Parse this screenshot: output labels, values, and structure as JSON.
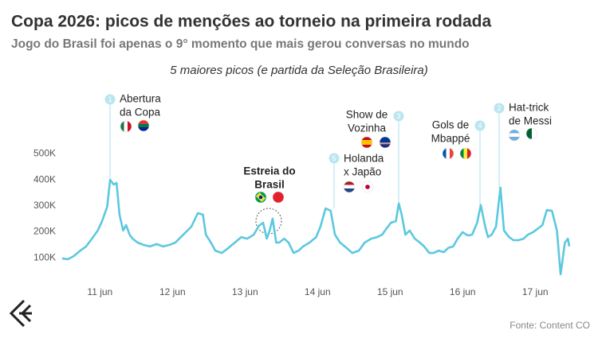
{
  "chart_data": {
    "type": "line",
    "title": "Copa 2026: picos de menções ao torneio na primeira rodada",
    "subtitle": "Jogo do Brasil foi apenas o 9° momento que mais gerou conversas no mundo",
    "caption": "5 maiores picos (e partida da Seleção Brasileira)",
    "source": "Fonte: Content CO",
    "color": "#5cc8df",
    "x": [
      10.48,
      10.56,
      10.64,
      10.73,
      10.81,
      10.89,
      10.97,
      11.03,
      11.1,
      11.14,
      11.19,
      11.23,
      11.27,
      11.32,
      11.36,
      11.41,
      11.45,
      11.52,
      11.6,
      11.69,
      11.78,
      11.87,
      11.96,
      12.04,
      12.15,
      12.26,
      12.35,
      12.42,
      12.46,
      12.53,
      12.59,
      12.68,
      12.77,
      12.86,
      12.95,
      13.03,
      13.12,
      13.19,
      13.25,
      13.3,
      13.34,
      13.38,
      13.43,
      13.47,
      13.54,
      13.6,
      13.67,
      13.74,
      13.8,
      13.89,
      13.98,
      14.04,
      14.11,
      14.18,
      14.24,
      14.31,
      14.4,
      14.48,
      14.57,
      14.65,
      14.74,
      14.82,
      14.89,
      14.93,
      15.01,
      15.08,
      15.12,
      15.16,
      15.21,
      15.27,
      15.34,
      15.41,
      15.47,
      15.54,
      15.6,
      15.67,
      15.74,
      15.8,
      15.87,
      15.93,
      16.0,
      16.07,
      16.13,
      16.2,
      16.25,
      16.31,
      16.35,
      16.4,
      16.46,
      16.52,
      16.57,
      16.64,
      16.7,
      16.77,
      16.84,
      16.9,
      16.97,
      17.03,
      17.1,
      17.16,
      17.23,
      17.3,
      17.35,
      17.41,
      17.45,
      17.47
    ],
    "values": [
      98,
      95,
      107,
      128,
      144,
      174,
      205,
      241,
      296,
      400,
      382,
      388,
      266,
      205,
      226,
      189,
      174,
      159,
      150,
      144,
      153,
      144,
      150,
      159,
      189,
      220,
      272,
      266,
      189,
      159,
      128,
      119,
      138,
      159,
      180,
      174,
      189,
      223,
      235,
      174,
      205,
      251,
      159,
      159,
      174,
      159,
      119,
      128,
      144,
      159,
      180,
      220,
      290,
      281,
      189,
      159,
      138,
      119,
      128,
      159,
      174,
      180,
      189,
      205,
      235,
      241,
      309,
      266,
      189,
      205,
      174,
      159,
      144,
      119,
      119,
      128,
      122,
      138,
      144,
      174,
      199,
      186,
      189,
      235,
      303,
      220,
      180,
      189,
      220,
      370,
      205,
      180,
      168,
      168,
      174,
      189,
      199,
      211,
      226,
      284,
      281,
      205,
      37,
      159,
      174,
      144
    ],
    "xlim": [
      10.48,
      17.47
    ],
    "xticks": [
      {
        "value": 11,
        "label": "11 jun"
      },
      {
        "value": 12,
        "label": "12 jun"
      },
      {
        "value": 13,
        "label": "13 jun"
      },
      {
        "value": 14,
        "label": "14 jun"
      },
      {
        "value": 15,
        "label": "15 jun"
      },
      {
        "value": 16,
        "label": "16 jun"
      },
      {
        "value": 17,
        "label": "17 jun"
      }
    ],
    "ylim": [
      0,
      550
    ],
    "yticks": [
      {
        "value": 100,
        "label": "100K"
      },
      {
        "value": 200,
        "label": "200K"
      },
      {
        "value": 300,
        "label": "300K"
      },
      {
        "value": 400,
        "label": "400K"
      },
      {
        "value": 500,
        "label": "500K"
      }
    ],
    "grid": false,
    "annotations": [
      {
        "rank": 1,
        "text": [
          "Abertura",
          "da Copa"
        ]
      },
      {
        "text": [
          "Estreia do",
          "Brasil"
        ]
      },
      {
        "rank": 5,
        "text": [
          "Holanda",
          "x Japão"
        ]
      },
      {
        "rank": 3,
        "text": [
          "Show de",
          "Vozinha"
        ]
      },
      {
        "rank": 4,
        "text": [
          "Gols de",
          "Mbappé"
        ]
      },
      {
        "rank": 2,
        "text": [
          "Hat-trick",
          "de Messi"
        ]
      }
    ]
  }
}
